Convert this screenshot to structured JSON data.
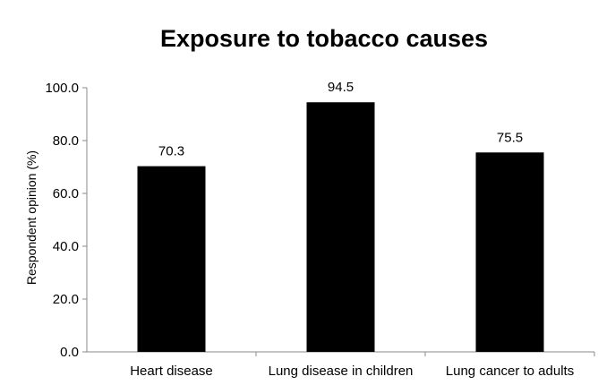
{
  "chart_data": {
    "type": "bar",
    "title": "Exposure to tobacco causes",
    "xlabel": "",
    "ylabel": "Respondent opinion (%)",
    "categories": [
      "Heart disease",
      "Lung disease in children",
      "Lung cancer to adults"
    ],
    "values": [
      70.3,
      94.5,
      75.5
    ],
    "value_labels": [
      "70.3",
      "94.5",
      "75.5"
    ],
    "ylim": [
      0,
      100
    ],
    "yticks": [
      "0.0",
      "20.0",
      "40.0",
      "60.0",
      "80.0",
      "100.0"
    ],
    "bar_color": "#000000",
    "grid": false,
    "legend": "none"
  }
}
